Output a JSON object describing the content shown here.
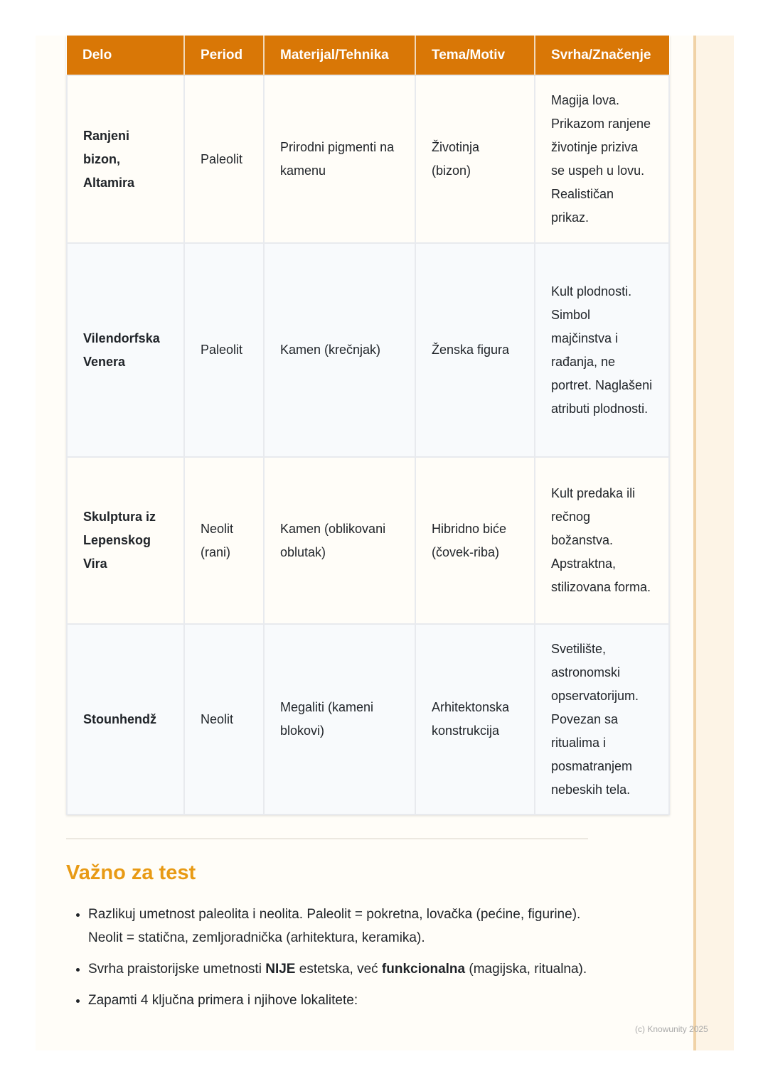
{
  "table": {
    "headers": [
      "Delo",
      "Period",
      "Materijal/Tehnika",
      "Tema/Motiv",
      "Svrha/Značenje"
    ],
    "rows": [
      [
        "Ranjeni bizon, Altamira",
        "Paleolit",
        "Prirodni pigmenti na kamenu",
        "Životinja (bizon)",
        "Magija lova. Prikazom ranjene životinje priziva se uspeh u lovu. Realističan prikaz."
      ],
      [
        "Vilendorfska Venera",
        "Paleolit",
        "Kamen (krečnjak)",
        "Ženska figura",
        "Kult plodnosti. Simbol majčinstva i rađanja, ne portret. Naglašeni atributi plodnosti."
      ],
      [
        "Skulptura iz Lepenskog Vira",
        "Neolit (rani)",
        "Kamen (oblikovani oblutak)",
        "Hibridno biće (čovek-riba)",
        "Kult predaka ili rečnog božanstva. Apstraktna, stilizovana forma."
      ],
      [
        "Stounhendž",
        "Neolit",
        "Megaliti (kameni blokovi)",
        "Arhitektonska konstrukcija",
        "Svetilište, astronomski opservatorijum. Povezan sa ritualima i posmatranjem nebeskih tela."
      ]
    ]
  },
  "section": {
    "title": "Važno za test",
    "bullets": [
      {
        "text": "Razlikuj umetnost paleolita i neolita. Paleolit = pokretna, lovačka (pećine, figurine). Neolit = statična, zemljoradnička (arhitektura, keramika)."
      },
      {
        "pre": "Svrha praistorijske umetnosti ",
        "bold1": "NIJE",
        "mid": " estetska, već ",
        "bold2": "funkcionalna",
        "post": " (magijska, ritualna)."
      },
      {
        "text": "Zapamti 4 ključna primera i njihove lokalitete:"
      }
    ]
  },
  "footer": {
    "copyright": "(c) Knowunity 2025"
  },
  "colors": {
    "header": "#d97706",
    "heading": "#e89a14",
    "side_border": "#f0d2a6"
  }
}
